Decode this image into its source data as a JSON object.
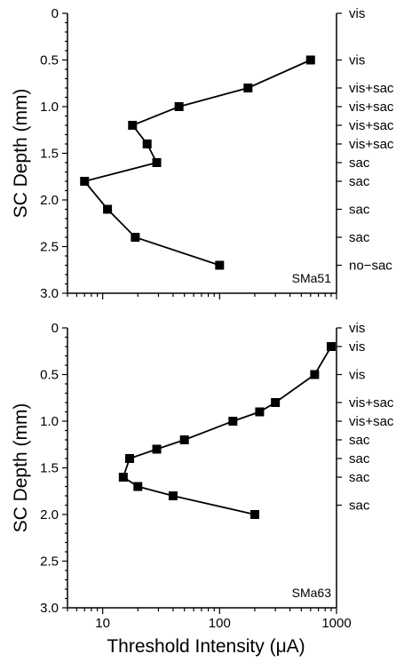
{
  "figure": {
    "x_axis_title": "Threshold Intensity (μA)",
    "x_tick_labels": [
      "10",
      "100",
      "1000"
    ]
  },
  "chart_data": [
    {
      "type": "line",
      "panel_label": "SMa51",
      "ylabel": "SC Depth (mm)",
      "xlabel": "Threshold Intensity (μA)",
      "xscale": "log",
      "xlim": [
        5,
        1000
      ],
      "ylim": [
        0,
        3.0
      ],
      "y_inverted": true,
      "y_ticks": [
        0,
        0.5,
        1.0,
        1.5,
        2.0,
        2.5,
        3.0
      ],
      "y_tick_labels": [
        "0",
        "0.5",
        "1.0",
        "1.5",
        "2.0",
        "2.5",
        "3.0"
      ],
      "series": [
        {
          "marker": "square",
          "points": [
            {
              "x": 600,
              "y": 0.5
            },
            {
              "x": 175,
              "y": 0.8
            },
            {
              "x": 45,
              "y": 1.0
            },
            {
              "x": 18,
              "y": 1.2
            },
            {
              "x": 24,
              "y": 1.4
            },
            {
              "x": 29,
              "y": 1.6
            },
            {
              "x": 7,
              "y": 1.8
            },
            {
              "x": 11,
              "y": 2.1
            },
            {
              "x": 19,
              "y": 2.4
            },
            {
              "x": 100,
              "y": 2.7
            }
          ]
        }
      ],
      "right_labels": [
        {
          "y": 0.0,
          "text": "vis"
        },
        {
          "y": 0.5,
          "text": "vis"
        },
        {
          "y": 0.8,
          "text": "vis+sac"
        },
        {
          "y": 1.0,
          "text": "vis+sac"
        },
        {
          "y": 1.2,
          "text": "vis+sac"
        },
        {
          "y": 1.4,
          "text": "vis+sac"
        },
        {
          "y": 1.6,
          "text": "sac"
        },
        {
          "y": 1.8,
          "text": "sac"
        },
        {
          "y": 2.1,
          "text": "sac"
        },
        {
          "y": 2.4,
          "text": "sac"
        },
        {
          "y": 2.7,
          "text": "no−sac"
        }
      ]
    },
    {
      "type": "line",
      "panel_label": "SMa63",
      "ylabel": "SC Depth (mm)",
      "xlabel": "Threshold Intensity (μA)",
      "xscale": "log",
      "xlim": [
        5,
        1000
      ],
      "ylim": [
        0,
        3.0
      ],
      "y_inverted": true,
      "y_ticks": [
        0,
        0.5,
        1.0,
        1.5,
        2.0,
        2.5,
        3.0
      ],
      "y_tick_labels": [
        "0",
        "0.5",
        "1.0",
        "1.5",
        "2.0",
        "2.5",
        "3.0"
      ],
      "series": [
        {
          "marker": "square",
          "points": [
            {
              "x": 900,
              "y": 0.2
            },
            {
              "x": 650,
              "y": 0.5
            },
            {
              "x": 300,
              "y": 0.8
            },
            {
              "x": 220,
              "y": 0.9
            },
            {
              "x": 130,
              "y": 1.0
            },
            {
              "x": 50,
              "y": 1.2
            },
            {
              "x": 29,
              "y": 1.3
            },
            {
              "x": 17,
              "y": 1.4
            },
            {
              "x": 15,
              "y": 1.6
            },
            {
              "x": 20,
              "y": 1.7
            },
            {
              "x": 40,
              "y": 1.8
            },
            {
              "x": 200,
              "y": 2.0
            }
          ]
        }
      ],
      "right_labels": [
        {
          "y": 0.0,
          "text": "vis"
        },
        {
          "y": 0.2,
          "text": "vis"
        },
        {
          "y": 0.5,
          "text": "vis"
        },
        {
          "y": 0.8,
          "text": "vis+sac"
        },
        {
          "y": 1.0,
          "text": "vis+sac"
        },
        {
          "y": 1.2,
          "text": "sac"
        },
        {
          "y": 1.4,
          "text": "sac"
        },
        {
          "y": 1.6,
          "text": "sac"
        },
        {
          "y": 1.9,
          "text": "sac"
        }
      ]
    }
  ]
}
